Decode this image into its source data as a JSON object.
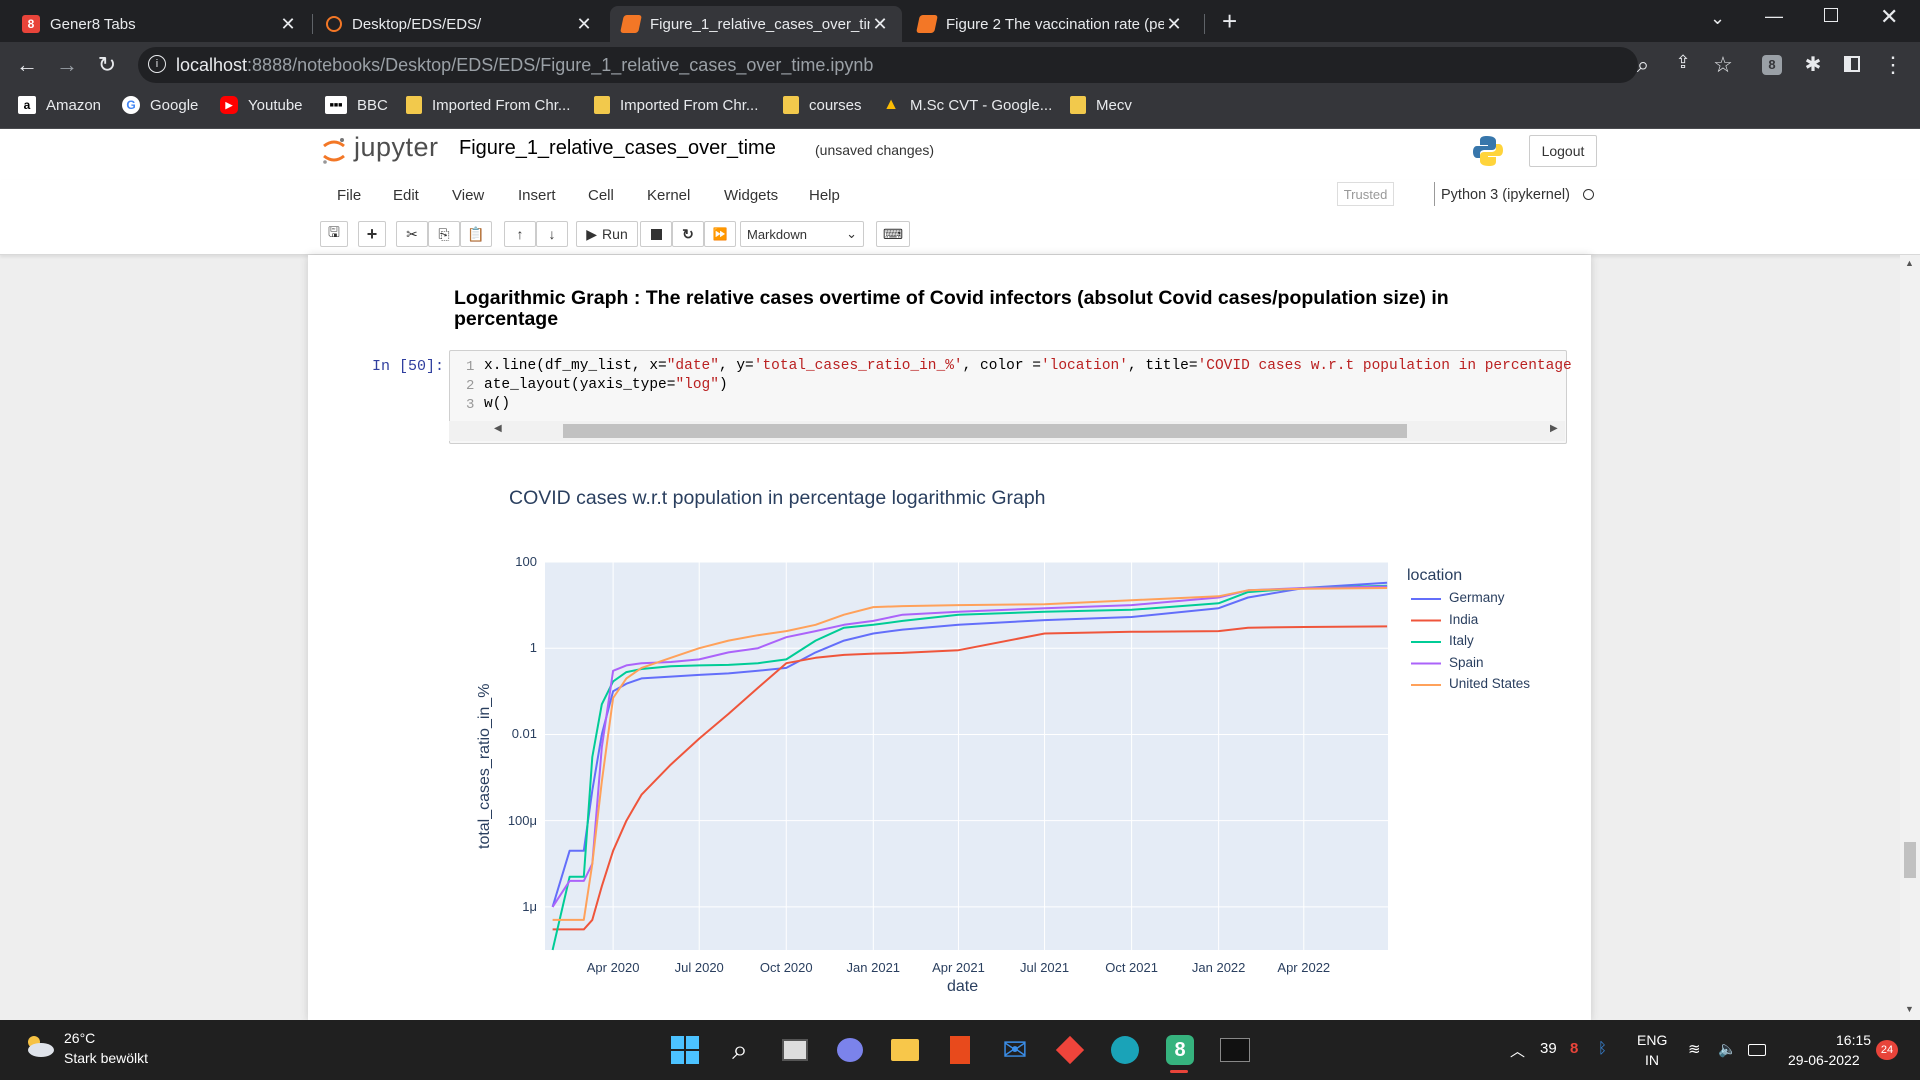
{
  "browser": {
    "tabs": [
      {
        "title": "Gener8 Tabs",
        "icon": "gener8-icon"
      },
      {
        "title": "Desktop/EDS/EDS/",
        "icon": "jupyter-icon"
      },
      {
        "title": "Figure_1_relative_cases_over_time",
        "icon": "notebook-icon"
      },
      {
        "title": "Figure 2 The vaccination rate (pe",
        "icon": "notebook-icon"
      }
    ],
    "url_host": "localhost",
    "url_path": ":8888/notebooks/Desktop/EDS/EDS/Figure_1_relative_cases_over_time.ipynb",
    "bookmarks": [
      {
        "label": "Amazon",
        "icon": "amazon-icon"
      },
      {
        "label": "Google",
        "icon": "google-icon"
      },
      {
        "label": "Youtube",
        "icon": "youtube-icon"
      },
      {
        "label": "BBC",
        "icon": "bbc-icon"
      },
      {
        "label": "Imported From Chr...",
        "icon": "folder-icon"
      },
      {
        "label": "Imported From Chr...",
        "icon": "folder-icon"
      },
      {
        "label": "courses",
        "icon": "folder-icon"
      },
      {
        "label": "M.Sc CVT - Google...",
        "icon": "drive-icon"
      },
      {
        "label": "Mecv",
        "icon": "folder-icon"
      }
    ]
  },
  "jupyter": {
    "logo_text": "jupyter",
    "notebook_name": "Figure_1_relative_cases_over_time",
    "save_status": "(unsaved changes)",
    "logout_label": "Logout",
    "menu": [
      "File",
      "Edit",
      "View",
      "Insert",
      "Cell",
      "Kernel",
      "Widgets",
      "Help"
    ],
    "trusted_label": "Trusted",
    "kernel_label": "Python 3 (ipykernel)",
    "run_label": "Run",
    "cell_type": "Markdown"
  },
  "notebook": {
    "heading": "Logarithmic Graph : The relative cases overtime of Covid infectors (absolut Covid cases/population size) in percentage",
    "prompt": "In [50]:",
    "line_numbers": [
      "1",
      "2",
      "3"
    ],
    "code": {
      "l1_a": "x.line(df_my_list, x=",
      "l1_b": "\"date\"",
      "l1_c": ", y=",
      "l1_d": "'total_cases_ratio_in_%'",
      "l1_e": ", color =",
      "l1_f": "'location'",
      "l1_g": ", title=",
      "l1_h": "'COVID cases w.r.t population in percentage",
      "l2_a": "ate_layout(yaxis_type=",
      "l2_b": "\"log\"",
      "l2_c": ")",
      "l3_a": "w()"
    }
  },
  "chart_data": {
    "type": "line",
    "title": "COVID cases w.r.t population in percentage logarithmic Graph",
    "xlabel": "date",
    "ylabel": "total_cases_ratio_in_%",
    "yscale": "log",
    "ylim": [
      1e-07,
      100
    ],
    "xlim": [
      "2020-01-20",
      "2022-06-29"
    ],
    "x_ticks": [
      "Apr 2020",
      "Jul 2020",
      "Oct 2020",
      "Jan 2021",
      "Apr 2021",
      "Jul 2021",
      "Oct 2021",
      "Jan 2022",
      "Apr 2022"
    ],
    "y_ticks": [
      "100",
      "1",
      "0.01",
      "100μ",
      "1μ"
    ],
    "legend_title": "location",
    "legend_position": "right",
    "grid": true,
    "x": [
      "2020-01-28",
      "2020-02-15",
      "2020-03-01",
      "2020-03-10",
      "2020-03-20",
      "2020-04-01",
      "2020-04-15",
      "2020-05-01",
      "2020-06-01",
      "2020-07-01",
      "2020-08-01",
      "2020-09-01",
      "2020-10-01",
      "2020-11-01",
      "2020-12-01",
      "2021-01-01",
      "2021-02-01",
      "2021-04-01",
      "2021-07-01",
      "2021-10-01",
      "2022-01-01",
      "2022-02-01",
      "2022-04-01",
      "2022-06-28"
    ],
    "series": [
      {
        "name": "Germany",
        "color": "#636efa",
        "values": [
          1e-06,
          2e-05,
          2e-05,
          0.0005,
          0.01,
          0.1,
          0.15,
          0.2,
          0.22,
          0.24,
          0.26,
          0.3,
          0.35,
          0.8,
          1.5,
          2.2,
          2.7,
          3.5,
          4.5,
          5.3,
          8.5,
          15,
          25,
          33
        ]
      },
      {
        "name": "India",
        "color": "#ef553b",
        "values": [
          3e-07,
          3e-07,
          3e-07,
          5e-07,
          3e-06,
          2e-05,
          0.0001,
          0.0004,
          0.002,
          0.008,
          0.03,
          0.12,
          0.45,
          0.6,
          0.7,
          0.75,
          0.78,
          0.9,
          2.2,
          2.4,
          2.5,
          3.0,
          3.1,
          3.2
        ]
      },
      {
        "name": "Italy",
        "color": "#00cc96",
        "values": [
          1e-07,
          5e-06,
          5e-06,
          0.003,
          0.05,
          0.17,
          0.28,
          0.33,
          0.38,
          0.4,
          0.41,
          0.45,
          0.55,
          1.5,
          3.0,
          3.5,
          4.3,
          6.0,
          7.0,
          7.8,
          11,
          20,
          25,
          28
        ]
      },
      {
        "name": "Spain",
        "color": "#ab63fa",
        "values": [
          1e-06,
          4e-06,
          4e-06,
          1e-05,
          0.005,
          0.3,
          0.4,
          0.45,
          0.48,
          0.55,
          0.8,
          1.0,
          1.8,
          2.5,
          3.5,
          4.3,
          6.0,
          7.0,
          8.5,
          10,
          15,
          22,
          25,
          27
        ]
      },
      {
        "name": "United States",
        "color": "#ffa15a",
        "values": [
          5e-07,
          5e-07,
          5e-07,
          1e-05,
          0.0008,
          0.07,
          0.2,
          0.35,
          0.6,
          1.0,
          1.5,
          2.0,
          2.5,
          3.5,
          6.0,
          9.0,
          9.5,
          10,
          10.5,
          13,
          16,
          22,
          24,
          25
        ]
      }
    ]
  },
  "taskbar": {
    "weather_temp": "26°C",
    "weather_desc": "Stark bewölkt",
    "tray_num": "39",
    "lang": "ENG",
    "region": "IN",
    "time": "16:15",
    "date": "29-06-2022",
    "notif_count": "24"
  }
}
